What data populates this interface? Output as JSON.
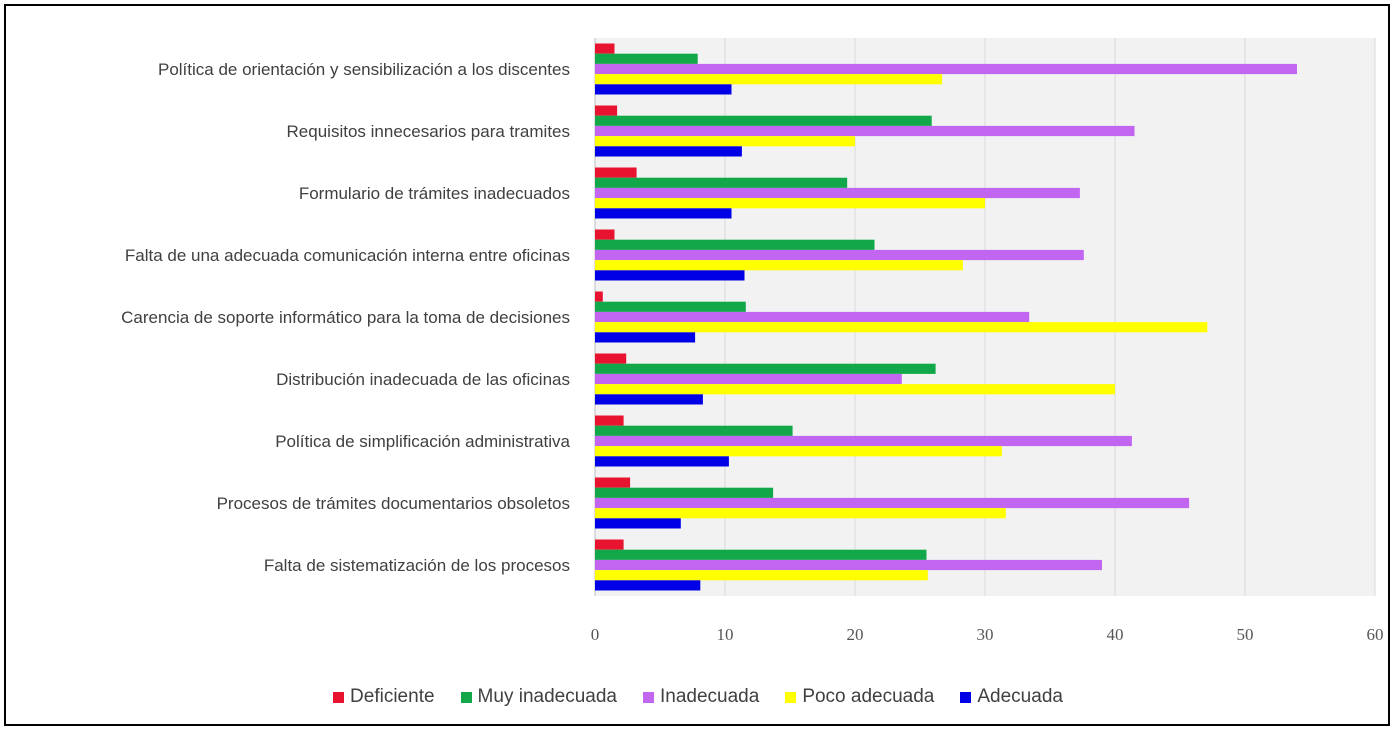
{
  "chart_data": {
    "type": "bar",
    "orientation": "horizontal",
    "title": "",
    "xlabel": "",
    "ylabel": "",
    "xlim": [
      0,
      60
    ],
    "x_ticks": [
      "0",
      "10",
      "20",
      "30",
      "40",
      "50",
      "60"
    ],
    "grid": true,
    "legend_position": "bottom",
    "categories": [
      "Política de orientación y sensibilización a los discentes",
      "Requisitos innecesarios para tramites",
      "Formulario de trámites inadecuados",
      "Falta de una adecuada comunicación interna entre oficinas",
      "Carencia de soporte informático para la toma de decisiones",
      "Distribución inadecuada de las oficinas",
      "Política de simplificación administrativa",
      "Procesos de trámites documentarios obsoletos",
      "Falta de sistematización de los procesos"
    ],
    "series": [
      {
        "name": "Deficiente",
        "color": "#e8132e",
        "values": [
          1.5,
          1.7,
          3.2,
          1.5,
          0.6,
          2.4,
          2.2,
          2.7,
          2.2
        ]
      },
      {
        "name": "Muy inadecuada",
        "color": "#12a84a",
        "values": [
          7.9,
          25.9,
          19.4,
          21.5,
          11.6,
          26.2,
          15.2,
          13.7,
          25.5
        ]
      },
      {
        "name": "Inadecuada",
        "color": "#c266f2",
        "values": [
          54.0,
          41.5,
          37.3,
          37.6,
          33.4,
          23.6,
          41.3,
          45.7,
          39.0
        ]
      },
      {
        "name": "Poco adecuada",
        "color": "#ffff00",
        "values": [
          26.7,
          20.0,
          30.0,
          28.3,
          47.1,
          40.0,
          31.3,
          31.6,
          25.6
        ]
      },
      {
        "name": "Adecuada",
        "color": "#0000e6",
        "values": [
          10.5,
          11.3,
          10.5,
          11.5,
          7.7,
          8.3,
          10.3,
          6.6,
          8.1
        ]
      }
    ]
  }
}
